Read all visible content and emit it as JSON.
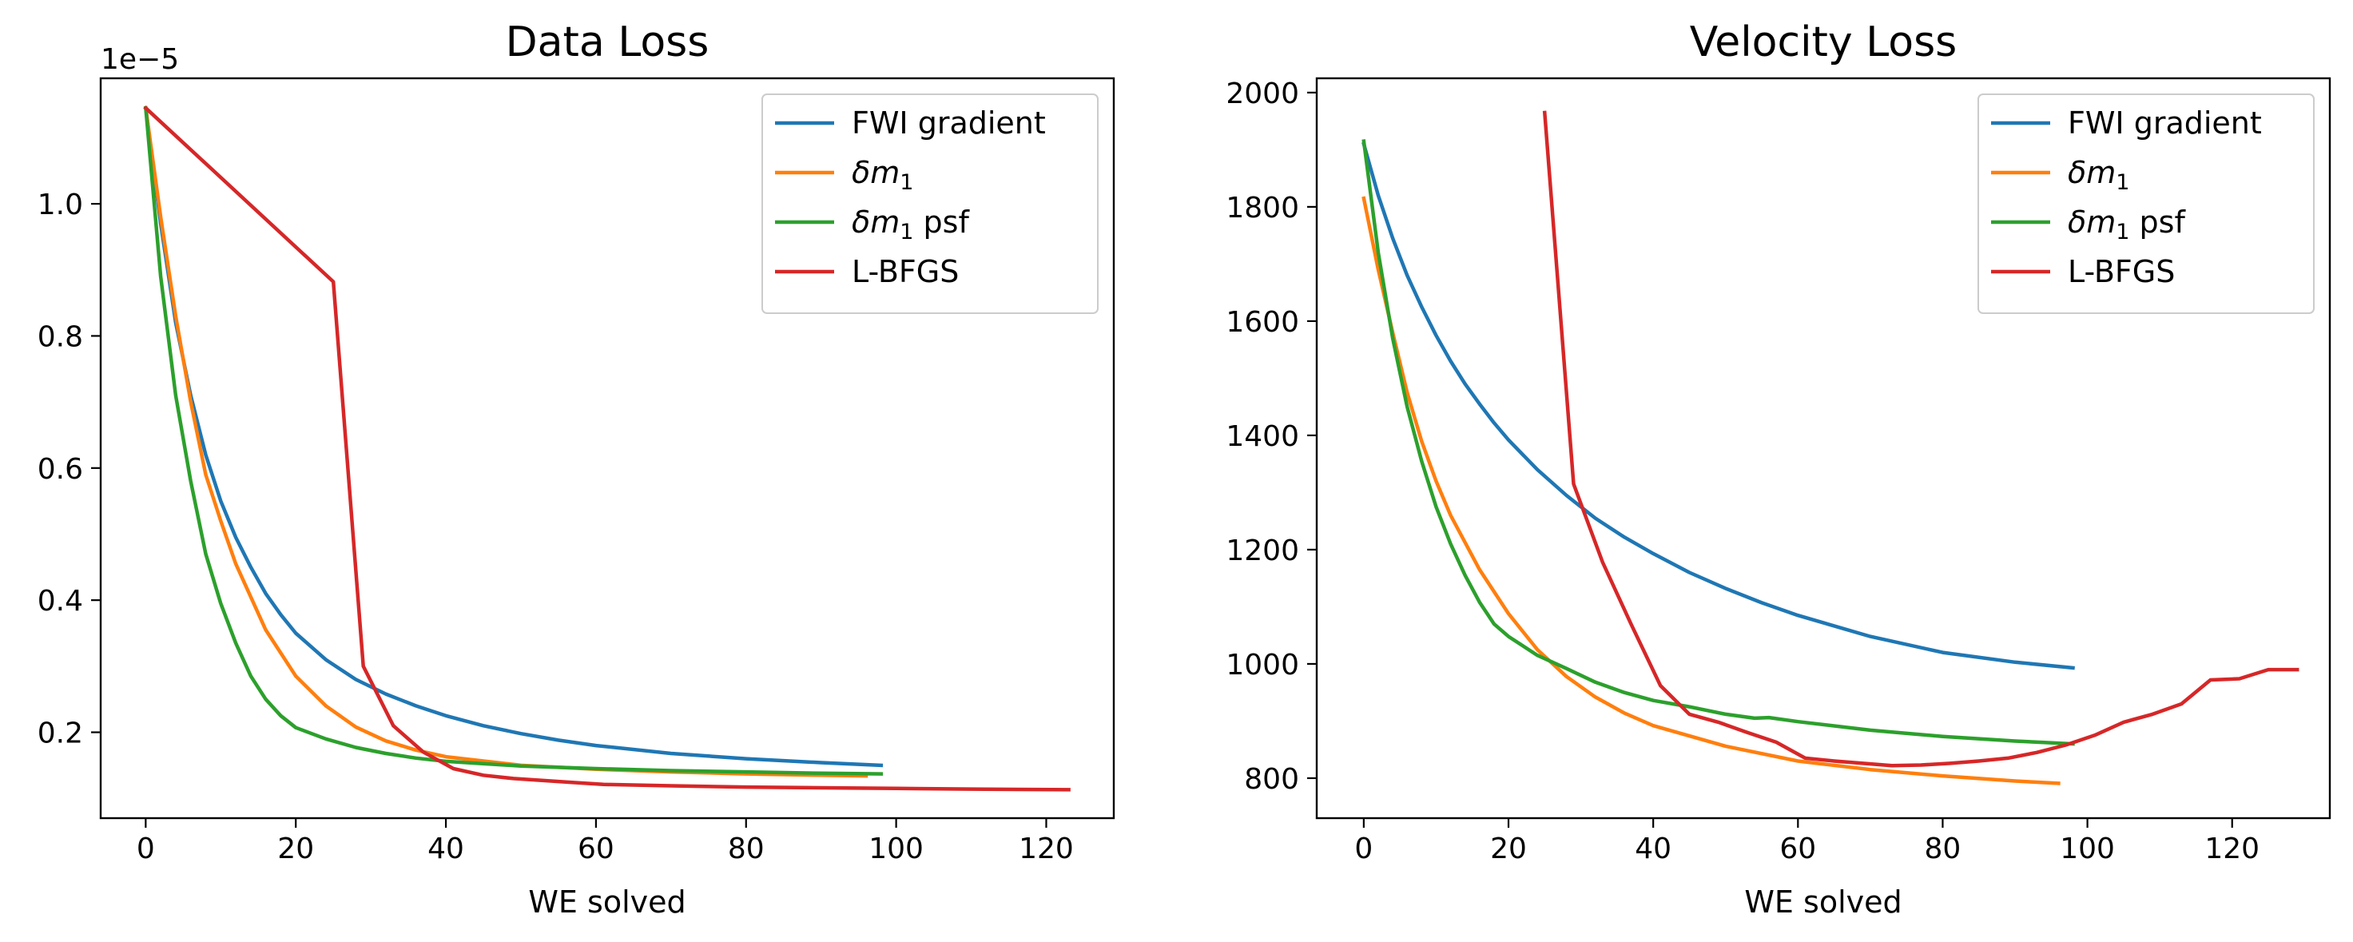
{
  "chart_data": [
    {
      "type": "line",
      "title": "Data Loss",
      "xlabel": "WE solved",
      "ylabel": "",
      "y_offset_label": "1e−5",
      "xlim": [
        -6,
        129
      ],
      "ylim": [
        0.07,
        1.19
      ],
      "x_ticks": [
        0,
        20,
        40,
        60,
        80,
        100,
        120
      ],
      "y_ticks": [
        0.2,
        0.4,
        0.6,
        0.8,
        1.0
      ],
      "y_tick_labels": [
        "0.2",
        "0.4",
        "0.6",
        "0.8",
        "1.0"
      ],
      "legend_position": "top-right",
      "grid": false,
      "series": [
        {
          "name": "FWI gradient",
          "color": "#1f77b4",
          "x": [
            0,
            2,
            4,
            6,
            8,
            10,
            12,
            14,
            16,
            18,
            20,
            24,
            28,
            32,
            36,
            40,
            45,
            50,
            55,
            60,
            70,
            80,
            90,
            98
          ],
          "y": [
            1.145,
            0.97,
            0.82,
            0.71,
            0.62,
            0.55,
            0.495,
            0.45,
            0.41,
            0.378,
            0.35,
            0.31,
            0.28,
            0.258,
            0.24,
            0.225,
            0.21,
            0.198,
            0.188,
            0.18,
            0.168,
            0.16,
            0.154,
            0.15
          ]
        },
        {
          "name": "δm₁",
          "color": "#ff7f0e",
          "x": [
            0,
            2,
            4,
            6,
            8,
            10,
            12,
            16,
            20,
            24,
            28,
            32,
            36,
            40,
            50,
            60,
            70,
            80,
            90,
            96
          ],
          "y": [
            1.145,
            0.98,
            0.83,
            0.7,
            0.59,
            0.52,
            0.455,
            0.355,
            0.285,
            0.24,
            0.208,
            0.187,
            0.173,
            0.163,
            0.15,
            0.144,
            0.14,
            0.137,
            0.135,
            0.134
          ]
        },
        {
          "name": "δm₁ psf",
          "color": "#2ca02c",
          "x": [
            0,
            2,
            4,
            6,
            8,
            10,
            12,
            14,
            16,
            18,
            20,
            24,
            28,
            32,
            36,
            40,
            50,
            60,
            70,
            80,
            90,
            98
          ],
          "y": [
            1.145,
            0.89,
            0.71,
            0.58,
            0.47,
            0.395,
            0.335,
            0.285,
            0.25,
            0.225,
            0.207,
            0.19,
            0.177,
            0.168,
            0.161,
            0.156,
            0.149,
            0.145,
            0.142,
            0.14,
            0.138,
            0.137
          ]
        },
        {
          "name": "L-BFGS",
          "color": "#d62728",
          "x": [
            0,
            25,
            29,
            33,
            37,
            41,
            45,
            49,
            53,
            57,
            61,
            70,
            80,
            90,
            100,
            110,
            123
          ],
          "y": [
            1.145,
            0.882,
            0.3,
            0.21,
            0.17,
            0.145,
            0.135,
            0.13,
            0.127,
            0.124,
            0.121,
            0.119,
            0.117,
            0.116,
            0.115,
            0.114,
            0.113
          ]
        }
      ]
    },
    {
      "type": "line",
      "title": "Velocity Loss",
      "xlabel": "WE solved",
      "ylabel": "",
      "xlim": [
        -6.5,
        133.5
      ],
      "ylim": [
        730,
        2025
      ],
      "x_ticks": [
        0,
        20,
        40,
        60,
        80,
        100,
        120
      ],
      "y_ticks": [
        800,
        1000,
        1200,
        1400,
        1600,
        1800,
        2000
      ],
      "y_tick_labels": [
        "800",
        "1000",
        "1200",
        "1400",
        "1600",
        "1800",
        "2000"
      ],
      "legend_position": "top-right",
      "grid": false,
      "series": [
        {
          "name": "FWI gradient",
          "color": "#1f77b4",
          "x": [
            0,
            2,
            4,
            6,
            8,
            10,
            12,
            14,
            16,
            18,
            20,
            24,
            28,
            32,
            36,
            40,
            45,
            50,
            55,
            60,
            70,
            80,
            90,
            98
          ],
          "y": [
            1910,
            1820,
            1745,
            1680,
            1625,
            1575,
            1530,
            1490,
            1455,
            1422,
            1392,
            1340,
            1295,
            1255,
            1222,
            1193,
            1160,
            1132,
            1107,
            1085,
            1048,
            1020,
            1003,
            993
          ]
        },
        {
          "name": "δm₁",
          "color": "#ff7f0e",
          "x": [
            0,
            2,
            4,
            6,
            8,
            10,
            12,
            16,
            20,
            24,
            28,
            32,
            36,
            40,
            50,
            60,
            70,
            80,
            90,
            96
          ],
          "y": [
            1815,
            1690,
            1580,
            1475,
            1390,
            1320,
            1260,
            1165,
            1088,
            1025,
            978,
            942,
            914,
            892,
            856,
            830,
            815,
            804,
            795,
            791
          ]
        },
        {
          "name": "δm₁ psf",
          "color": "#2ca02c",
          "x": [
            0,
            2,
            4,
            6,
            8,
            10,
            12,
            14,
            16,
            18,
            20,
            24,
            28,
            32,
            36,
            40,
            45,
            50,
            54,
            56,
            60,
            70,
            80,
            90,
            98
          ],
          "y": [
            1915,
            1720,
            1570,
            1450,
            1355,
            1275,
            1210,
            1155,
            1108,
            1070,
            1048,
            1015,
            992,
            968,
            950,
            936,
            925,
            912,
            905,
            906,
            899,
            884,
            873,
            865,
            860
          ]
        },
        {
          "name": "L-BFGS",
          "color": "#d62728",
          "x": [
            25,
            29,
            33,
            37,
            41,
            45,
            49,
            53,
            57,
            61,
            65,
            69,
            73,
            77,
            81,
            85,
            89,
            93,
            97,
            101,
            105,
            109,
            113,
            117,
            121,
            125,
            129
          ],
          "y": [
            1965,
            1315,
            1178,
            1068,
            962,
            912,
            898,
            880,
            863,
            835,
            830,
            826,
            822,
            823,
            826,
            830,
            835,
            845,
            858,
            875,
            898,
            912,
            930,
            972,
            974,
            990,
            990
          ]
        }
      ]
    }
  ]
}
